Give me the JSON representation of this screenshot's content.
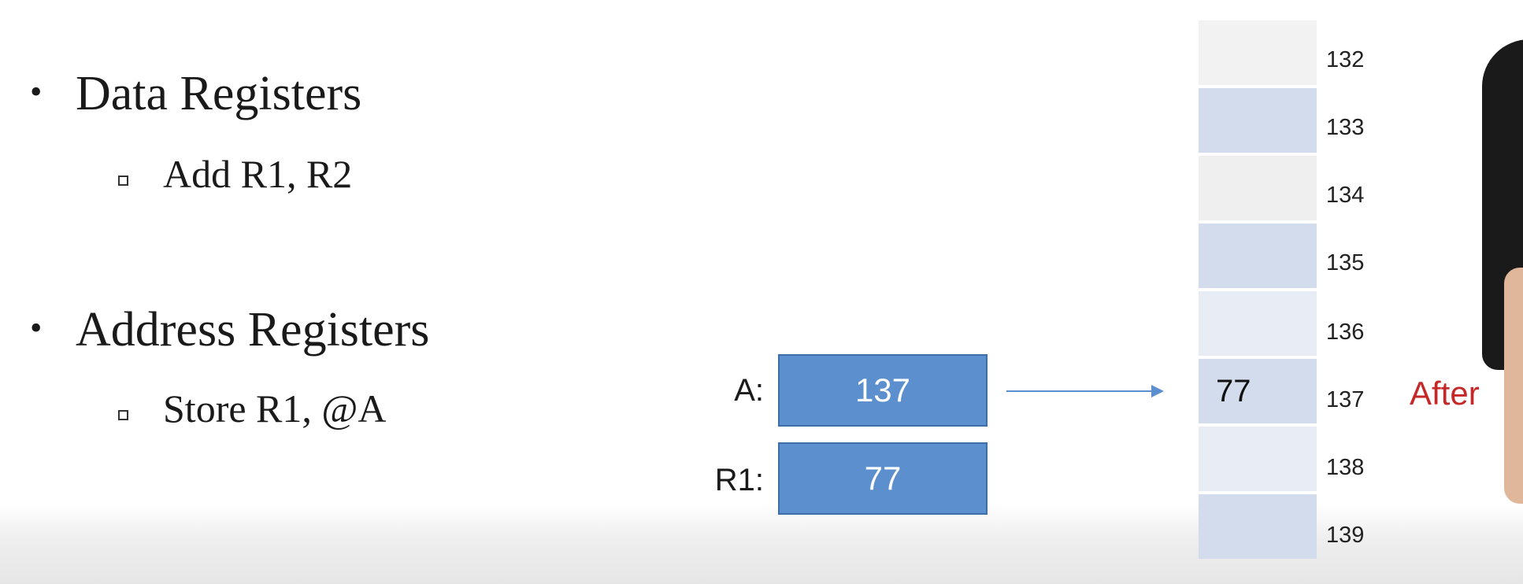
{
  "bullets": [
    {
      "text": "Data Registers",
      "sub": "Add R1, R2"
    },
    {
      "text": "Address Registers",
      "sub": "Store R1, @A"
    }
  ],
  "registers": [
    {
      "label": "A:",
      "value": "137"
    },
    {
      "label": "R1:",
      "value": "77"
    }
  ],
  "memory": {
    "cells": [
      {
        "address": "132",
        "content": ""
      },
      {
        "address": "133",
        "content": ""
      },
      {
        "address": "134",
        "content": ""
      },
      {
        "address": "135",
        "content": ""
      },
      {
        "address": "136",
        "content": ""
      },
      {
        "address": "137",
        "content": "77"
      },
      {
        "address": "138",
        "content": ""
      },
      {
        "address": "139",
        "content": ""
      }
    ],
    "cell_colors": [
      "#f2f2f2",
      "#d2dcec",
      "#efefef",
      "#d2dcec",
      "#e8edf5",
      "#d2dcec",
      "#e8edf5",
      "#d2dcec"
    ]
  },
  "state_label": "After",
  "colors": {
    "register_fill": "#5b8fce",
    "arrow": "#5b8fce",
    "state_label": "#c62828"
  }
}
